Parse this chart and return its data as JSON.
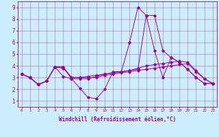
{
  "xlabel": "Windchill (Refroidissement éolien,°C)",
  "bg_color": "#cceeff",
  "line_color": "#990099",
  "xlim": [
    -0.5,
    23.5
  ],
  "ylim": [
    0.5,
    9.5
  ],
  "yticks": [
    1,
    2,
    3,
    4,
    5,
    6,
    7,
    8,
    9
  ],
  "xticks": [
    0,
    1,
    2,
    3,
    4,
    5,
    6,
    7,
    8,
    9,
    10,
    11,
    12,
    13,
    14,
    15,
    16,
    17,
    18,
    19,
    20,
    21,
    22,
    23
  ],
  "series": [
    [
      3.3,
      3.0,
      2.4,
      2.7,
      3.9,
      3.9,
      2.9,
      2.1,
      1.3,
      1.2,
      2.0,
      3.5,
      3.5,
      6.0,
      9.0,
      8.3,
      5.3,
      3.0,
      4.7,
      4.3,
      3.7,
      3.0,
      2.5,
      2.5
    ],
    [
      3.3,
      3.0,
      2.4,
      2.7,
      3.9,
      3.1,
      2.9,
      2.9,
      2.9,
      3.1,
      3.3,
      3.4,
      3.5,
      3.6,
      3.8,
      4.0,
      4.1,
      4.2,
      4.3,
      4.4,
      4.3,
      3.6,
      2.9,
      2.5
    ],
    [
      3.3,
      3.0,
      2.4,
      2.7,
      3.9,
      3.9,
      3.0,
      3.0,
      3.0,
      3.0,
      3.2,
      3.3,
      3.4,
      3.5,
      3.6,
      3.7,
      3.8,
      3.9,
      4.0,
      4.1,
      4.2,
      3.5,
      2.9,
      2.5
    ],
    [
      3.3,
      3.0,
      2.4,
      2.7,
      3.9,
      3.8,
      3.0,
      3.0,
      3.1,
      3.2,
      3.3,
      3.4,
      3.5,
      3.6,
      3.7,
      8.3,
      8.3,
      5.3,
      4.7,
      4.3,
      3.7,
      3.0,
      2.5,
      2.5
    ]
  ]
}
